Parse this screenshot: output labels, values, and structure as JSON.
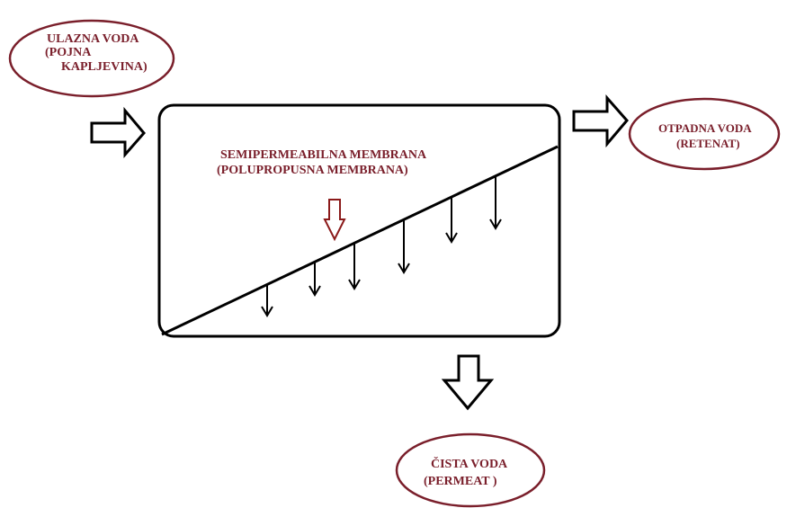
{
  "labels": {
    "feed_line1": "ULAZNA VODA",
    "feed_line2": "(POJNA",
    "feed_line3": "KAPLJEVINA)",
    "retentate_line1": "OTPADNA VODA",
    "retentate_line2": "(RETENAT)",
    "permeate_line1": "ČISTA VODA",
    "permeate_line2": "(PERMEAT )",
    "membrane_line1": "SEMIPERMEABILNA MEMBRANA",
    "membrane_line2": "(POLUPROPUSNA MEMBRANA)"
  },
  "colors": {
    "label": "#7a1f2b",
    "ellipse_stroke": "#7a1f2b",
    "stroke": "#000000",
    "membrane_arrow": "#8b1a1a"
  }
}
